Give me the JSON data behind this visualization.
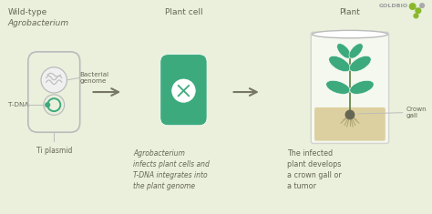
{
  "bg_color": "#eaf0dc",
  "green_cell": "#3daa7e",
  "green_leaf": "#3daa7e",
  "gray_outline": "#bbbbbb",
  "dark_text": "#666655",
  "arrow_color": "#999988",
  "sand_color": "#ddd0a0",
  "goldbio_green": "#8ab82a",
  "goldbio_gray": "#aaaaaa",
  "title_wt_line1": "Wild-type",
  "title_wt_line2": "Agrobacterium",
  "title_cell": "Plant cell",
  "title_plant": "Plant",
  "label_tdna": "T-DNA",
  "label_bact": "Bacterial\ngenome",
  "label_ti": "Ti plasmid",
  "label_crown": "Crown\ngall",
  "text_middle": "Agrobacterium\ninfects plant cells and\nT-DNA integrates into\nthe plant genome",
  "text_right": "The infected\nplant develops\na crown gall or\na tumor",
  "goldbio_text": "GOLDBIO",
  "fig_width": 4.74,
  "fig_height": 2.35,
  "dpi": 100
}
